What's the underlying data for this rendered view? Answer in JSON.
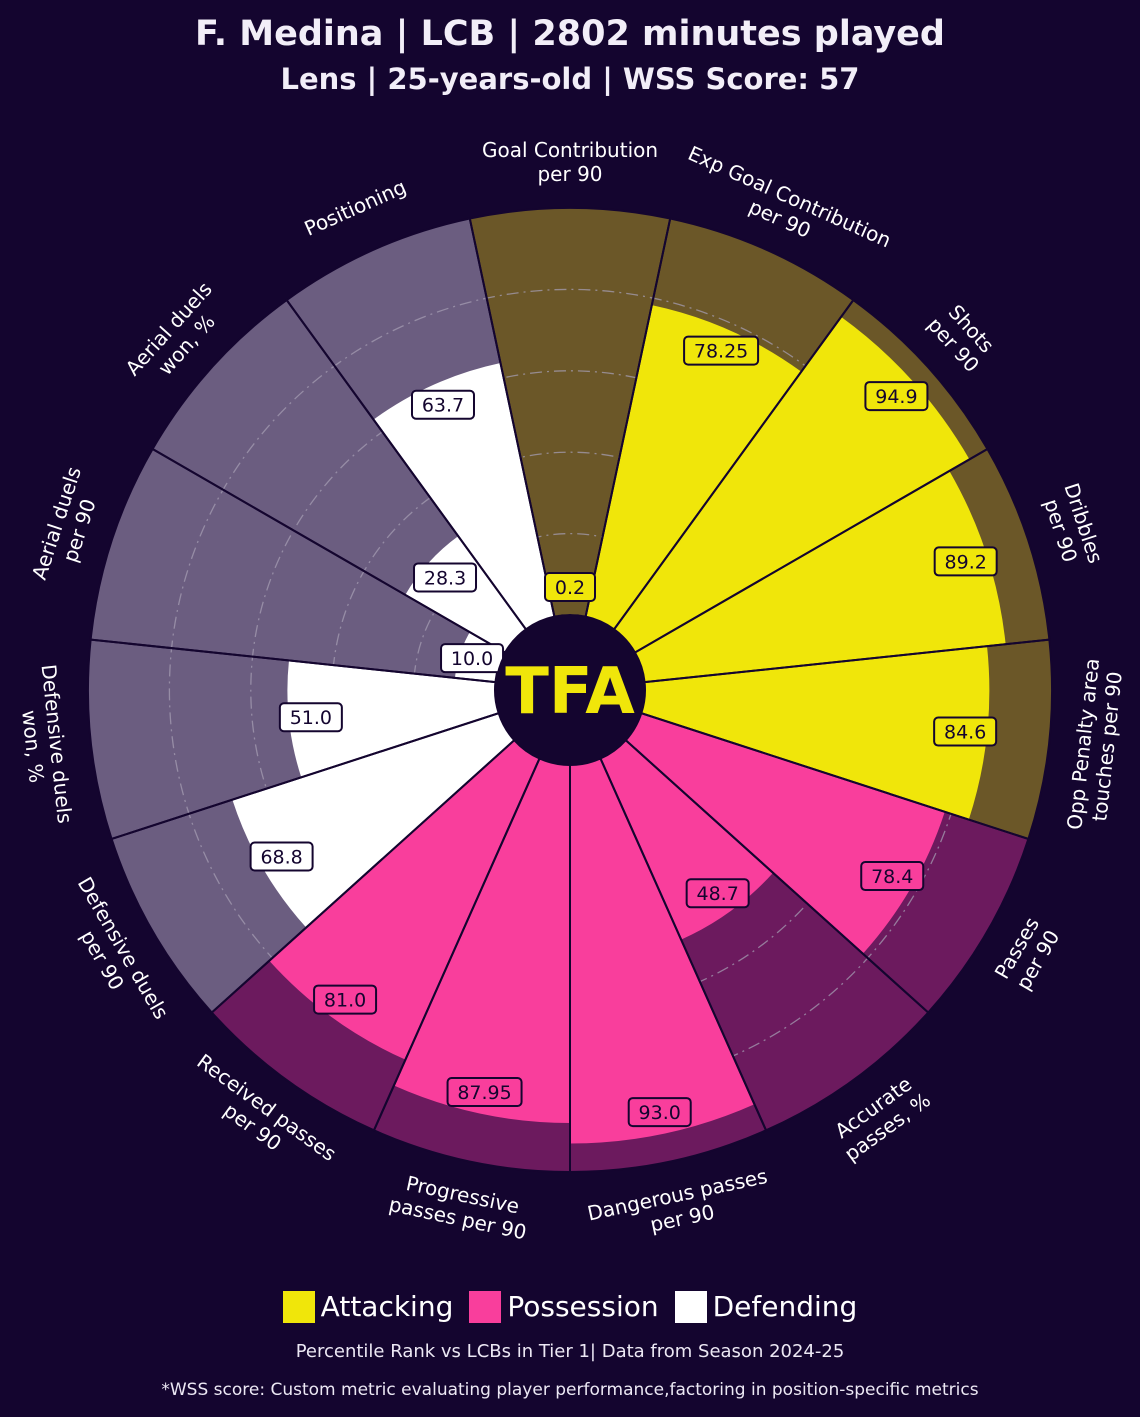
{
  "header": {
    "title": "F. Medina | LCB | 2802 minutes played",
    "subtitle": "Lens | 25-years-old | WSS Score: 57"
  },
  "logo_text": "TFA",
  "colors": {
    "background": "#14052f",
    "attacking_fill": "#f0e60a",
    "attacking_bg": "#6b5728",
    "possession_fill": "#f93e9c",
    "possession_bg": "#6c1a5e",
    "defending_fill": "#ffffff",
    "defending_bg": "#6b5d80"
  },
  "chart_data": {
    "type": "radial-bar",
    "rlim": [
      0,
      100
    ],
    "grid": true,
    "categories": [
      {
        "label": "Goal Contribution\nper 90",
        "value": 0.2,
        "value_label": "0.2",
        "group": "Attacking"
      },
      {
        "label": "Exp Goal Contribution\nper 90",
        "value": 78.25,
        "value_label": "78.25",
        "group": "Attacking"
      },
      {
        "label": "Shots\nper 90",
        "value": 94.9,
        "value_label": "94.9",
        "group": "Attacking"
      },
      {
        "label": "Dribbles\nper 90",
        "value": 89.2,
        "value_label": "89.2",
        "group": "Attacking"
      },
      {
        "label": "Opp Penalty area\ntouches per 90",
        "value": 84.6,
        "value_label": "84.6",
        "group": "Attacking"
      },
      {
        "label": "Passes\nper 90",
        "value": 78.4,
        "value_label": "78.4",
        "group": "Possession"
      },
      {
        "label": "Accurate\npasses, %",
        "value": 48.7,
        "value_label": "48.7",
        "group": "Possession"
      },
      {
        "label": "Dangerous passes\nper 90",
        "value": 93.0,
        "value_label": "93.0",
        "group": "Possession"
      },
      {
        "label": "Progressive\npasses per 90",
        "value": 87.95,
        "value_label": "87.95",
        "group": "Possession"
      },
      {
        "label": "Received passes\nper 90",
        "value": 81.0,
        "value_label": "81.0",
        "group": "Possession"
      },
      {
        "label": "Defensive duels\nper 90",
        "value": 68.8,
        "value_label": "68.8",
        "group": "Defending"
      },
      {
        "label": "Defensive duels\nwon, %",
        "value": 51.0,
        "value_label": "51.0",
        "group": "Defending"
      },
      {
        "label": "Aerial duels\nper 90",
        "value": 10.0,
        "value_label": "10.0",
        "group": "Defending"
      },
      {
        "label": "Aerial duels\nwon, %",
        "value": 28.3,
        "value_label": "28.3",
        "group": "Defending"
      },
      {
        "label": "Positioning",
        "value": 63.7,
        "value_label": "63.7",
        "group": "Defending"
      }
    ],
    "legend": {
      "placement": "bottom",
      "entries": [
        "Attacking",
        "Possession",
        "Defending"
      ]
    }
  },
  "footer": {
    "note": "Percentile Rank vs LCBs in Tier 1| Data from Season 2024-25",
    "wss_note": "*WSS score: Custom metric evaluating player performance,factoring in position-specific metrics"
  }
}
